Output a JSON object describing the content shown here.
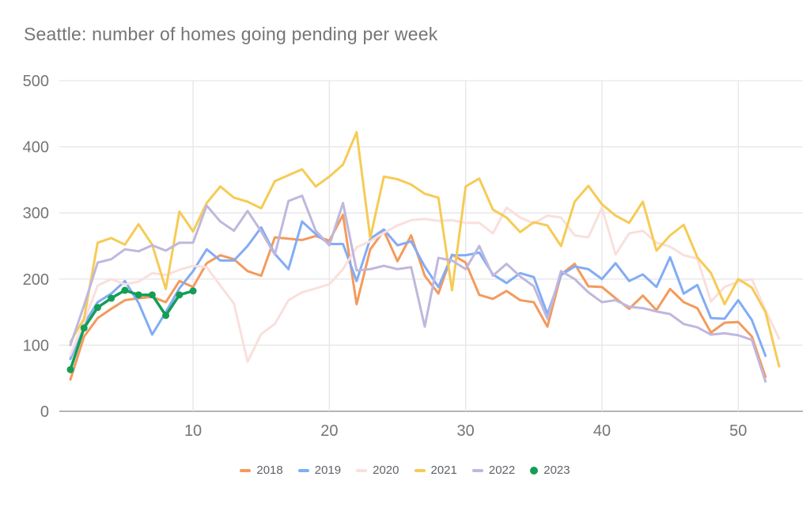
{
  "title": "Seattle: number of homes going pending per week",
  "chart_data": {
    "type": "line",
    "title": "Seattle: number of homes going pending per week",
    "xlabel": "",
    "ylabel": "",
    "x_units": "week of year",
    "x_start": 1,
    "grid": true,
    "legend_position": "bottom",
    "x_axis": {
      "ticks": [
        10,
        20,
        30,
        40,
        50
      ],
      "range": [
        1,
        53
      ]
    },
    "y_axis": {
      "ticks": [
        0,
        100,
        200,
        300,
        400,
        500
      ],
      "range": [
        0,
        500
      ]
    },
    "axis_text_color": "#757575",
    "gridline_color": "#e6e6e6",
    "baseline_color": "#b5b5b5",
    "series": [
      {
        "name": "2018",
        "color": "#f49a5c",
        "style": "line",
        "values": [
          48,
          113,
          141,
          155,
          168,
          171,
          173,
          165,
          197,
          188,
          224,
          236,
          230,
          212,
          205,
          263,
          261,
          259,
          265,
          258,
          297,
          162,
          245,
          273,
          227,
          266,
          205,
          178,
          237,
          225,
          176,
          170,
          182,
          168,
          165,
          128,
          207,
          223,
          189,
          188,
          171,
          155,
          175,
          153,
          185,
          165,
          156,
          119,
          134,
          135,
          113,
          52
        ]
      },
      {
        "name": "2019",
        "color": "#82acf5",
        "style": "line",
        "values": [
          79,
          132,
          165,
          178,
          197,
          164,
          116,
          150,
          186,
          212,
          245,
          228,
          228,
          250,
          278,
          238,
          215,
          287,
          268,
          253,
          253,
          197,
          261,
          275,
          251,
          257,
          219,
          188,
          236,
          236,
          240,
          207,
          194,
          209,
          203,
          147,
          206,
          219,
          215,
          200,
          224,
          197,
          207,
          188,
          233,
          178,
          191,
          141,
          140,
          168,
          138,
          84
        ]
      },
      {
        "name": "2020",
        "color": "#f9e0dd",
        "style": "line",
        "values": [
          85,
          135,
          190,
          200,
          192,
          196,
          209,
          206,
          214,
          220,
          218,
          190,
          163,
          75,
          117,
          132,
          168,
          180,
          186,
          192,
          215,
          248,
          257,
          270,
          281,
          289,
          291,
          288,
          289,
          285,
          285,
          269,
          308,
          293,
          284,
          296,
          293,
          266,
          263,
          308,
          237,
          269,
          273,
          255,
          249,
          236,
          231,
          166,
          188,
          196,
          200,
          153,
          110
        ]
      },
      {
        "name": "2021",
        "color": "#f6cb55",
        "style": "line",
        "values": [
          105,
          140,
          255,
          262,
          252,
          283,
          252,
          185,
          302,
          272,
          315,
          340,
          323,
          317,
          307,
          348,
          357,
          366,
          340,
          355,
          373,
          422,
          262,
          355,
          351,
          343,
          329,
          323,
          183,
          340,
          352,
          305,
          293,
          271,
          286,
          281,
          250,
          317,
          341,
          313,
          296,
          285,
          317,
          243,
          266,
          282,
          233,
          209,
          162,
          200,
          187,
          150,
          68
        ]
      },
      {
        "name": "2022",
        "color": "#c0b7de",
        "style": "line",
        "values": [
          100,
          160,
          225,
          230,
          245,
          242,
          251,
          243,
          255,
          255,
          311,
          287,
          273,
          303,
          272,
          237,
          318,
          326,
          273,
          251,
          315,
          213,
          215,
          220,
          215,
          218,
          128,
          232,
          228,
          215,
          250,
          205,
          223,
          204,
          189,
          140,
          212,
          200,
          180,
          165,
          168,
          158,
          156,
          151,
          147,
          132,
          127,
          116,
          118,
          115,
          108,
          45
        ]
      },
      {
        "name": "2023",
        "color": "#129e57",
        "style": "line+points",
        "values": [
          63,
          126,
          157,
          171,
          183,
          176,
          176,
          145,
          176,
          182
        ]
      }
    ]
  }
}
